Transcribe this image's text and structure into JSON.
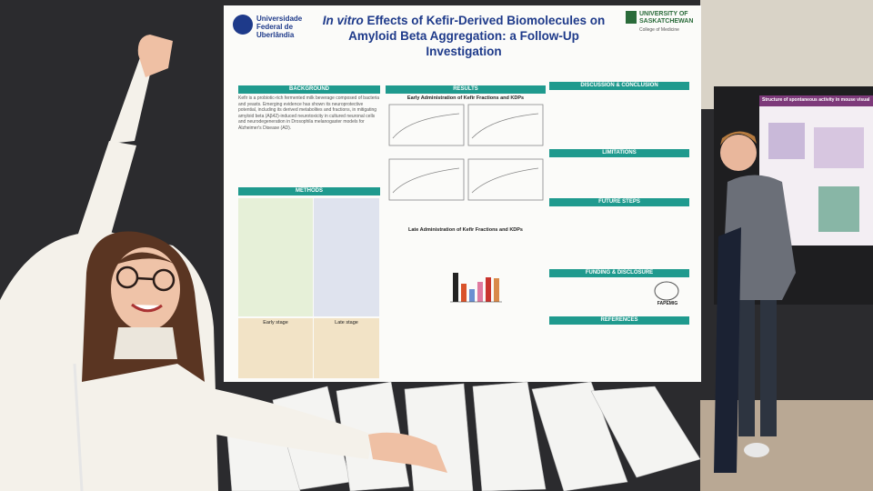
{
  "poster": {
    "left_logo": "Universidade Federal de Uberlândia",
    "title_italic": "In vitro",
    "title_rest": "Effects of Kefir-Derived Biomolecules on Amyloid Beta Aggregation: a Follow-Up Investigation",
    "right_logo": "University of Saskatchewan",
    "right_logo_sub": "College of Medicine",
    "sections": {
      "background": "BACKGROUND",
      "background_text": "Kefir is a probiotic-rich fermented milk beverage composed of bacteria and yeasts. Emerging evidence has shown its neuroprotective potential, including its derived metabolites and fractions, in mitigating amyloid beta (Aβ42)-induced neurotoxicity in cultured neuronal cells and neurodegeneration in Drosophila melanogaster models for Alzheimer's Disease (AD).",
      "methods": "METHODS",
      "early_stage": "Early stage",
      "late_stage": "Late stage",
      "results": "RESULTS",
      "early_admin": "Early Administration of Kefir Fractions and KDPs",
      "late_admin": "Late Administration of Kefir Fractions and KDPs",
      "discussion": "DISCUSSION & CONCLUSION",
      "limitations": "LIMITATIONS",
      "future": "FUTURE STEPS",
      "funding": "FUNDING & DISCLOSURE",
      "fapemig": "FAPEMIG",
      "references": "REFERENCES"
    }
  },
  "neighbor_poster": {
    "title": "Structure of spontaneous activity in mouse visual cortex"
  }
}
